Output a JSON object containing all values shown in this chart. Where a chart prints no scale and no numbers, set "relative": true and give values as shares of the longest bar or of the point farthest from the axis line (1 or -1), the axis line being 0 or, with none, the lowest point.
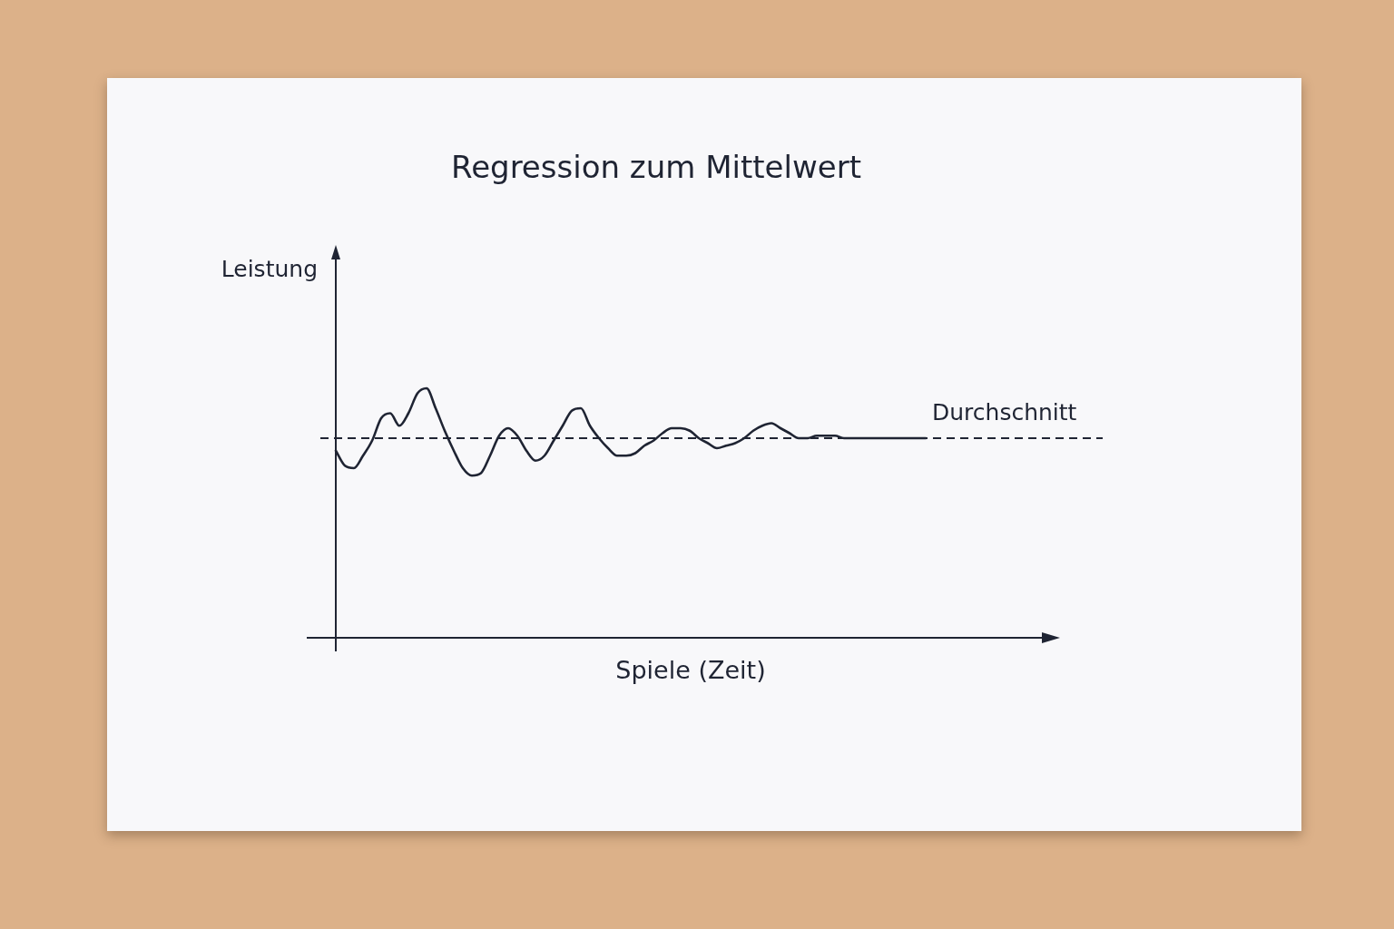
{
  "chart_data": {
    "type": "line",
    "title": "Regression zum Mittelwert",
    "xlabel": "Spiele (Zeit)",
    "ylabel": "Leistung",
    "categories": [
      null,
      null,
      null,
      null,
      null,
      null,
      null,
      null,
      null,
      null,
      null,
      null,
      null,
      null,
      null,
      null,
      null,
      null,
      null,
      null,
      null,
      null,
      null,
      null,
      null,
      null,
      null,
      null,
      null,
      null,
      null,
      null,
      null,
      null,
      null,
      null,
      null,
      null,
      null,
      null,
      null,
      null,
      null,
      null,
      null,
      null,
      null,
      null,
      null,
      null,
      null,
      null,
      null,
      null,
      null,
      null,
      null,
      null,
      null,
      null,
      null,
      null,
      null,
      null,
      null,
      null
    ],
    "values": [
      0.75,
      0.69,
      0.68,
      0.73,
      0.79,
      0.88,
      0.9,
      0.85,
      0.9,
      0.98,
      1.0,
      0.92,
      0.83,
      0.75,
      0.68,
      0.65,
      0.66,
      0.73,
      0.81,
      0.84,
      0.81,
      0.75,
      0.71,
      0.73,
      0.79,
      0.85,
      0.91,
      0.92,
      0.85,
      0.8,
      0.76,
      0.73,
      0.73,
      0.74,
      0.77,
      0.79,
      0.82,
      0.84,
      0.84,
      0.83,
      0.8,
      0.78,
      0.76,
      0.77,
      0.78,
      0.8,
      0.83,
      0.85,
      0.86,
      0.84,
      0.82,
      0.8,
      0.8,
      0.81,
      0.81,
      0.81,
      0.8,
      0.8,
      0.8,
      0.8,
      0.8,
      0.8,
      0.8,
      0.8,
      0.8,
      0.8
    ],
    "color": "#1f2433",
    "relative": true,
    "ref_lines": [
      {
        "axis": "y",
        "value": 0.8,
        "label": "Durchschnitt",
        "color": "#1f2433",
        "line_style": "dashed"
      }
    ]
  }
}
